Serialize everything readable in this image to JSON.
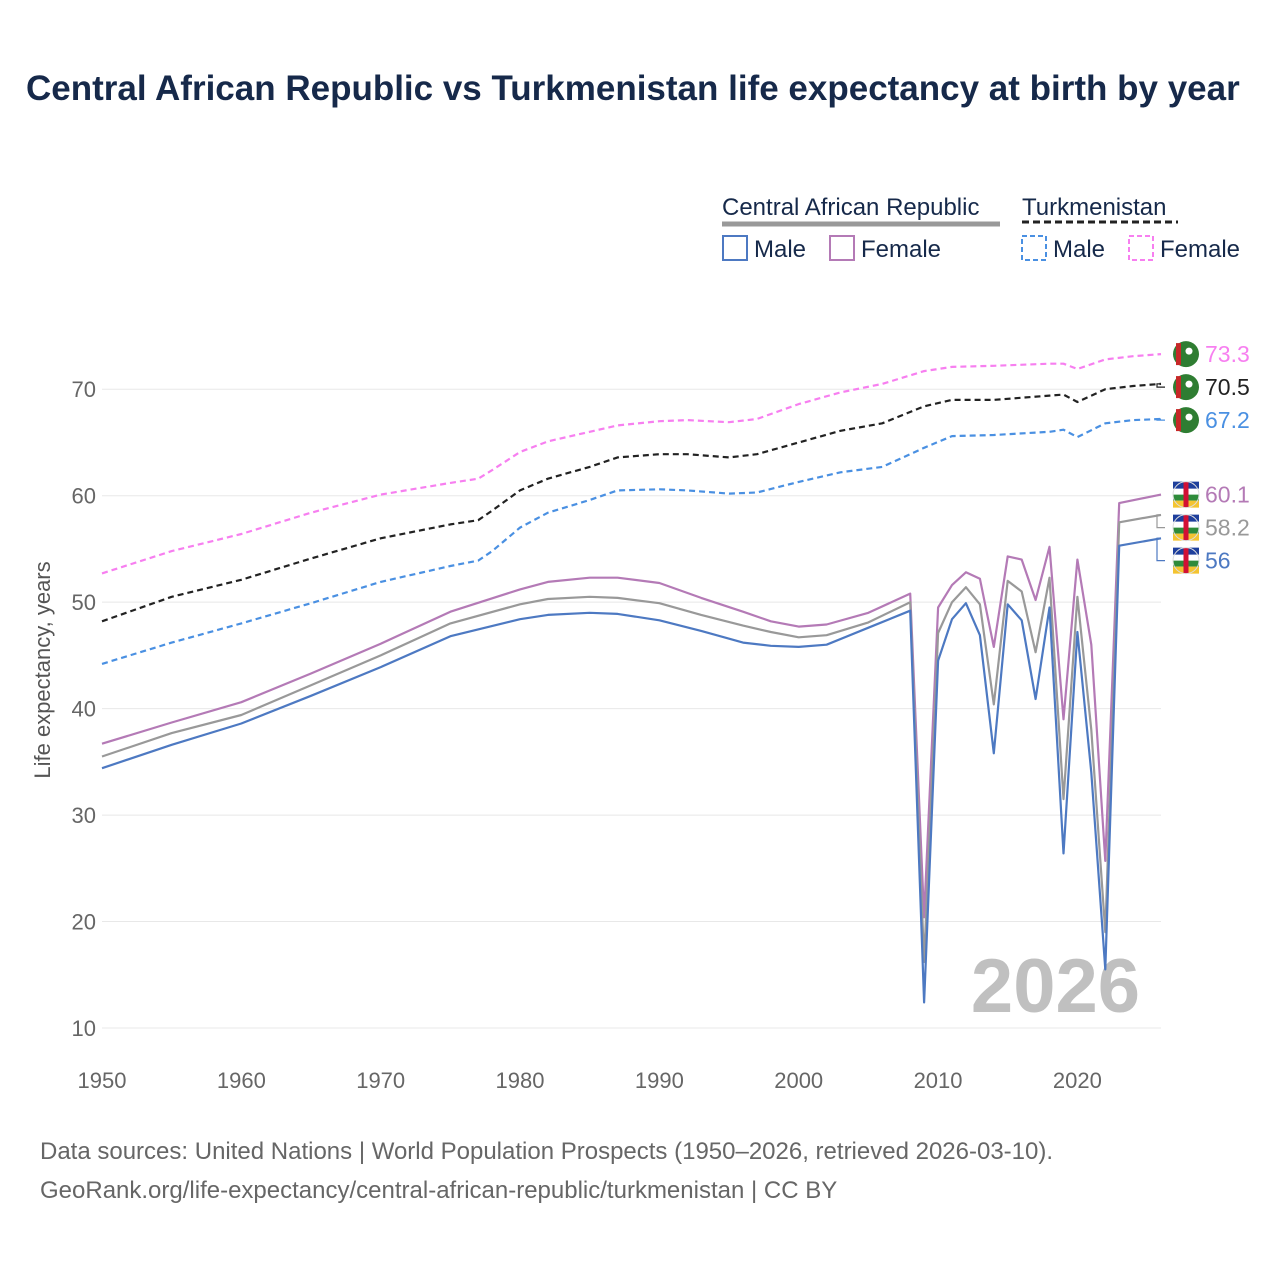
{
  "title": "Central African Republic vs Turkmenistan life expectancy at birth by year",
  "source_line1": "Data sources: United Nations | World Population Prospects (1950–2026, retrieved 2026-03-10).",
  "source_line2": "GeoRank.org/life-expectancy/central-african-republic/turkmenistan | CC BY",
  "colors": {
    "car_male": "#4d79c2",
    "car_female": "#b47ab6",
    "car_total": "#999999",
    "tkm_male": "#4a90e2",
    "tkm_female": "#f77ff0",
    "tkm_total": "#222222",
    "grid": "#e8e8e8",
    "text": "#666666",
    "year_watermark": "#c0c0c0"
  },
  "chart_data": {
    "type": "line",
    "title": "Central African Republic vs Turkmenistan life expectancy at birth by year",
    "xlabel": "",
    "ylabel": "Life expectancy, years",
    "xlim": [
      1950,
      2026
    ],
    "ylim": [
      10,
      75
    ],
    "xticks": [
      1950,
      1960,
      1970,
      1980,
      1990,
      2000,
      2010,
      2020
    ],
    "yticks": [
      10,
      20,
      30,
      40,
      50,
      60,
      70
    ],
    "grid": true,
    "watermark_year": "2026",
    "legend": {
      "position": "top-right",
      "groups": [
        {
          "country": "Central African Republic",
          "style": "solid",
          "items": [
            "Male",
            "Female"
          ]
        },
        {
          "country": "Turkmenistan",
          "style": "dashed",
          "items": [
            "Male",
            "Female"
          ]
        }
      ]
    },
    "series": [
      {
        "name": "Turkmenistan Female",
        "country": "Turkmenistan",
        "sex": "Female",
        "style": "dashed",
        "end_label": "73.3",
        "points": [
          [
            1950,
            52.7
          ],
          [
            1955,
            54.8
          ],
          [
            1960,
            56.4
          ],
          [
            1965,
            58.4
          ],
          [
            1970,
            60.1
          ],
          [
            1975,
            61.2
          ],
          [
            1977,
            61.6
          ],
          [
            1978,
            62.4
          ],
          [
            1980,
            64.1
          ],
          [
            1982,
            65.1
          ],
          [
            1985,
            66.0
          ],
          [
            1987,
            66.6
          ],
          [
            1990,
            67.0
          ],
          [
            1992,
            67.1
          ],
          [
            1995,
            66.9
          ],
          [
            1997,
            67.2
          ],
          [
            2000,
            68.6
          ],
          [
            2003,
            69.7
          ],
          [
            2006,
            70.5
          ],
          [
            2009,
            71.7
          ],
          [
            2011,
            72.1
          ],
          [
            2014,
            72.2
          ],
          [
            2018,
            72.4
          ],
          [
            2019,
            72.4
          ],
          [
            2020,
            71.9
          ],
          [
            2022,
            72.8
          ],
          [
            2024,
            73.1
          ],
          [
            2026,
            73.3
          ]
        ]
      },
      {
        "name": "Turkmenistan Total",
        "country": "Turkmenistan",
        "sex": "Total",
        "style": "dashed",
        "end_label": "70.5",
        "points": [
          [
            1950,
            48.2
          ],
          [
            1955,
            50.5
          ],
          [
            1960,
            52.1
          ],
          [
            1965,
            54.1
          ],
          [
            1970,
            56.0
          ],
          [
            1975,
            57.3
          ],
          [
            1977,
            57.7
          ],
          [
            1978,
            58.6
          ],
          [
            1980,
            60.5
          ],
          [
            1982,
            61.6
          ],
          [
            1985,
            62.7
          ],
          [
            1987,
            63.6
          ],
          [
            1990,
            63.9
          ],
          [
            1992,
            63.9
          ],
          [
            1995,
            63.6
          ],
          [
            1997,
            63.9
          ],
          [
            2000,
            65.0
          ],
          [
            2003,
            66.1
          ],
          [
            2006,
            66.8
          ],
          [
            2009,
            68.4
          ],
          [
            2011,
            69.0
          ],
          [
            2014,
            69.0
          ],
          [
            2018,
            69.4
          ],
          [
            2019,
            69.5
          ],
          [
            2020,
            68.8
          ],
          [
            2022,
            70.0
          ],
          [
            2024,
            70.3
          ],
          [
            2026,
            70.5
          ]
        ]
      },
      {
        "name": "Turkmenistan Male",
        "country": "Turkmenistan",
        "sex": "Male",
        "style": "dashed",
        "end_label": "67.2",
        "points": [
          [
            1950,
            44.2
          ],
          [
            1955,
            46.2
          ],
          [
            1960,
            48.0
          ],
          [
            1965,
            49.9
          ],
          [
            1970,
            51.9
          ],
          [
            1975,
            53.4
          ],
          [
            1977,
            53.9
          ],
          [
            1978,
            54.8
          ],
          [
            1980,
            57.0
          ],
          [
            1982,
            58.4
          ],
          [
            1985,
            59.6
          ],
          [
            1987,
            60.5
          ],
          [
            1990,
            60.6
          ],
          [
            1992,
            60.5
          ],
          [
            1995,
            60.2
          ],
          [
            1997,
            60.3
          ],
          [
            2000,
            61.3
          ],
          [
            2003,
            62.2
          ],
          [
            2006,
            62.7
          ],
          [
            2009,
            64.5
          ],
          [
            2011,
            65.6
          ],
          [
            2014,
            65.7
          ],
          [
            2018,
            66.0
          ],
          [
            2019,
            66.2
          ],
          [
            2020,
            65.5
          ],
          [
            2022,
            66.8
          ],
          [
            2024,
            67.1
          ],
          [
            2026,
            67.2
          ]
        ]
      },
      {
        "name": "Central African Republic Female",
        "country": "Central African Republic",
        "sex": "Female",
        "style": "solid",
        "end_label": "60.1",
        "points": [
          [
            1950,
            36.7
          ],
          [
            1955,
            38.7
          ],
          [
            1960,
            40.6
          ],
          [
            1965,
            43.3
          ],
          [
            1970,
            46.1
          ],
          [
            1975,
            49.1
          ],
          [
            1980,
            51.2
          ],
          [
            1982,
            51.9
          ],
          [
            1985,
            52.3
          ],
          [
            1987,
            52.3
          ],
          [
            1990,
            51.8
          ],
          [
            1993,
            50.4
          ],
          [
            1996,
            49.1
          ],
          [
            1998,
            48.2
          ],
          [
            2000,
            47.7
          ],
          [
            2002,
            47.9
          ],
          [
            2005,
            49.0
          ],
          [
            2008,
            50.8
          ],
          [
            2009,
            20.4
          ],
          [
            2010,
            49.5
          ],
          [
            2011,
            51.6
          ],
          [
            2012,
            52.8
          ],
          [
            2013,
            52.2
          ],
          [
            2014,
            45.8
          ],
          [
            2015,
            54.3
          ],
          [
            2016,
            54.0
          ],
          [
            2017,
            50.2
          ],
          [
            2018,
            55.2
          ],
          [
            2019,
            39.0
          ],
          [
            2020,
            54.0
          ],
          [
            2021,
            46.0
          ],
          [
            2022,
            25.7
          ],
          [
            2023,
            59.3
          ],
          [
            2026,
            60.1
          ]
        ]
      },
      {
        "name": "Central African Republic Total",
        "country": "Central African Republic",
        "sex": "Total",
        "style": "solid",
        "end_label": "58.2",
        "points": [
          [
            1950,
            35.5
          ],
          [
            1955,
            37.7
          ],
          [
            1960,
            39.4
          ],
          [
            1965,
            42.2
          ],
          [
            1970,
            45.0
          ],
          [
            1975,
            48.0
          ],
          [
            1980,
            49.8
          ],
          [
            1982,
            50.3
          ],
          [
            1985,
            50.5
          ],
          [
            1987,
            50.4
          ],
          [
            1990,
            49.9
          ],
          [
            1993,
            48.8
          ],
          [
            1996,
            47.8
          ],
          [
            1998,
            47.2
          ],
          [
            2000,
            46.7
          ],
          [
            2002,
            46.9
          ],
          [
            2005,
            48.1
          ],
          [
            2008,
            50.0
          ],
          [
            2009,
            16.2
          ],
          [
            2010,
            47.1
          ],
          [
            2011,
            50.0
          ],
          [
            2012,
            51.4
          ],
          [
            2013,
            49.8
          ],
          [
            2014,
            40.4
          ],
          [
            2015,
            52.0
          ],
          [
            2016,
            51.0
          ],
          [
            2017,
            45.3
          ],
          [
            2018,
            52.3
          ],
          [
            2019,
            31.5
          ],
          [
            2020,
            50.5
          ],
          [
            2021,
            38.0
          ],
          [
            2022,
            19.0
          ],
          [
            2023,
            57.5
          ],
          [
            2026,
            58.2
          ]
        ]
      },
      {
        "name": "Central African Republic Male",
        "country": "Central African Republic",
        "sex": "Male",
        "style": "solid",
        "end_label": "56",
        "points": [
          [
            1950,
            34.4
          ],
          [
            1955,
            36.6
          ],
          [
            1960,
            38.6
          ],
          [
            1965,
            41.2
          ],
          [
            1970,
            43.9
          ],
          [
            1975,
            46.8
          ],
          [
            1980,
            48.4
          ],
          [
            1982,
            48.8
          ],
          [
            1985,
            49.0
          ],
          [
            1987,
            48.9
          ],
          [
            1990,
            48.3
          ],
          [
            1993,
            47.3
          ],
          [
            1996,
            46.2
          ],
          [
            1998,
            45.9
          ],
          [
            2000,
            45.8
          ],
          [
            2002,
            46.0
          ],
          [
            2005,
            47.6
          ],
          [
            2008,
            49.2
          ],
          [
            2009,
            12.4
          ],
          [
            2010,
            44.5
          ],
          [
            2011,
            48.4
          ],
          [
            2012,
            49.9
          ],
          [
            2013,
            46.9
          ],
          [
            2014,
            35.8
          ],
          [
            2015,
            49.8
          ],
          [
            2016,
            48.3
          ],
          [
            2017,
            40.9
          ],
          [
            2018,
            49.5
          ],
          [
            2019,
            26.4
          ],
          [
            2020,
            47.2
          ],
          [
            2021,
            34.0
          ],
          [
            2022,
            15.5
          ],
          [
            2023,
            55.3
          ],
          [
            2026,
            56.0
          ]
        ]
      }
    ]
  }
}
